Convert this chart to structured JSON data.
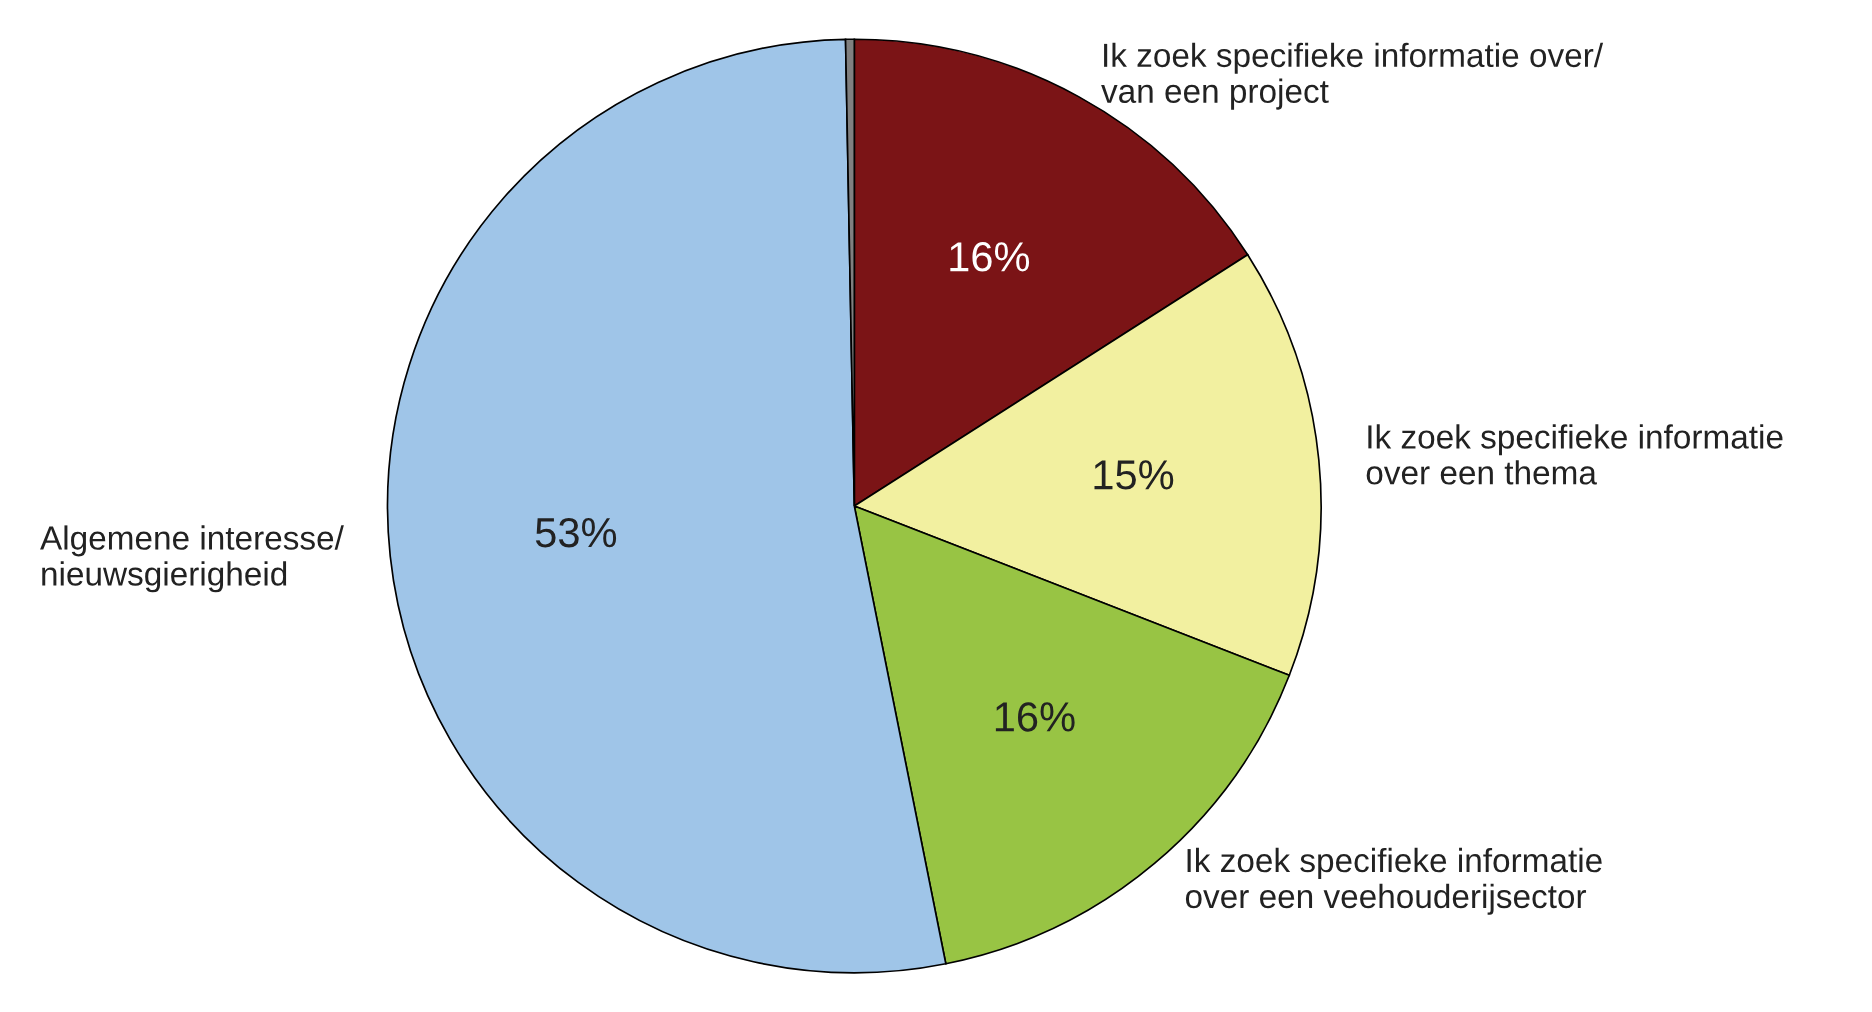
{
  "chart_data": {
    "type": "pie",
    "categories": [
      "Ik zoek specifieke informatie over/\nvan een project",
      "Ik zoek specifieke informatie\nover een thema",
      "Ik zoek specifieke informatie\nover een veehouderijsector",
      "Algemene interesse/\nnieuwsgierigheid",
      null
    ],
    "values": [
      16,
      15,
      16,
      53,
      0.3
    ],
    "value_labels": [
      "16%",
      "15%",
      "16%",
      "53%",
      null
    ],
    "colors": [
      "#7b1416",
      "#f2f0a0",
      "#98c444",
      "#9fc5e8",
      "#808080"
    ]
  }
}
